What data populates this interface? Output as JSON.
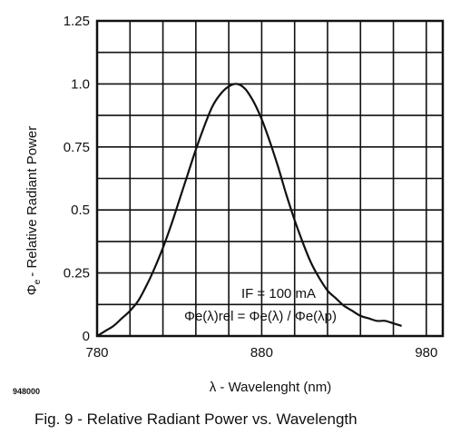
{
  "chart_data": {
    "type": "line",
    "xlabel": "λ - Wavelenght (nm)",
    "ylabel": "Φe - Relative Radiant Power",
    "ylabel_symbol": "Φ",
    "ylabel_sub": "e",
    "ylabel_rest": "- Relative Radiant Power",
    "xlim": [
      780,
      990
    ],
    "ylim": [
      0,
      1.25
    ],
    "x_ticks": [
      780,
      880,
      980
    ],
    "x_tick_labels": [
      "780",
      "880",
      "980"
    ],
    "y_ticks": [
      0,
      0.25,
      0.5,
      0.75,
      1.0,
      1.25
    ],
    "y_tick_labels": [
      "0",
      "0.25",
      "0.5",
      "0.75",
      "1.0",
      "1.25"
    ],
    "grid": true,
    "grid_vertical_step": 20,
    "grid_horizontal_step": 0.125,
    "series": [
      {
        "x": [
          780,
          785,
          790,
          795,
          800,
          805,
          810,
          815,
          820,
          825,
          830,
          835,
          840,
          845,
          850,
          855,
          860,
          865,
          870,
          875,
          880,
          885,
          890,
          895,
          900,
          905,
          910,
          915,
          920,
          925,
          930,
          935,
          940,
          945,
          950,
          955,
          960,
          965
        ],
        "y": [
          0.0,
          0.02,
          0.04,
          0.07,
          0.1,
          0.14,
          0.2,
          0.27,
          0.35,
          0.44,
          0.54,
          0.64,
          0.74,
          0.83,
          0.91,
          0.96,
          0.99,
          1.0,
          0.98,
          0.93,
          0.86,
          0.77,
          0.67,
          0.56,
          0.46,
          0.37,
          0.29,
          0.23,
          0.18,
          0.15,
          0.12,
          0.1,
          0.08,
          0.07,
          0.06,
          0.06,
          0.05,
          0.04
        ]
      }
    ],
    "annotation": {
      "line1": "IF = 100 mA",
      "line2": "Φe(λ)rel = Φe(λ) / Φe(λp)"
    }
  },
  "figure_code": "948000",
  "caption": "Fig. 9 - Relative Radiant Power vs. Wavelength"
}
